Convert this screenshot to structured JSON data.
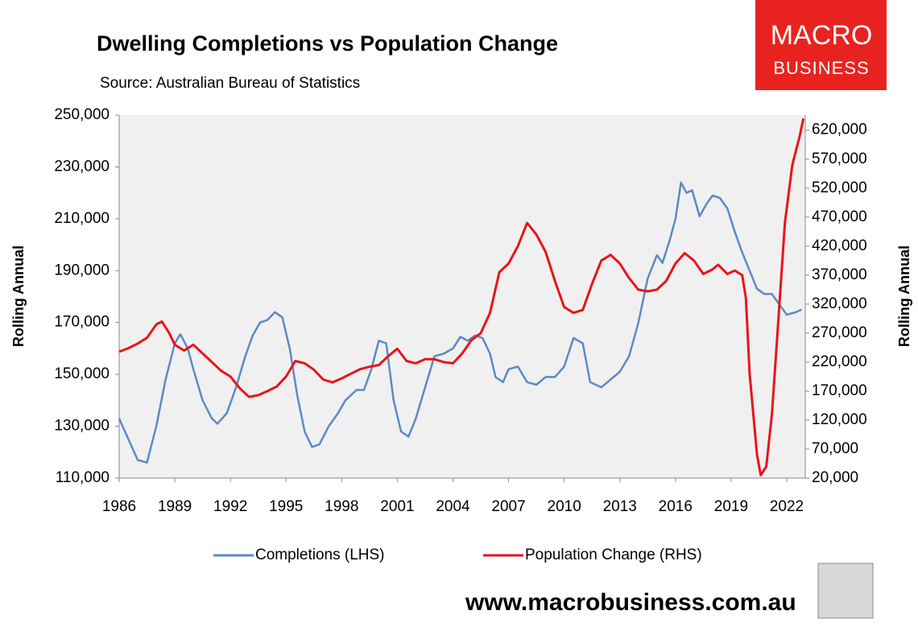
{
  "chart_data": {
    "type": "line",
    "title": "Dwelling Completions vs Population Change",
    "subtitle": "Source: Australian Bureau of Statistics",
    "logo": [
      "MACRO",
      "BUSINESS"
    ],
    "footer": "www.macrobusiness.com.au",
    "ylabel": "Rolling Annual",
    "y2label": "Rolling Annual",
    "xlim": [
      1986,
      2023
    ],
    "xticks": [
      1986,
      1989,
      1992,
      1995,
      1998,
      2001,
      2004,
      2007,
      2010,
      2013,
      2016,
      2019,
      2022
    ],
    "ylim": [
      110000,
      250000
    ],
    "yticks": [
      {
        "value": 110000,
        "label": "110,000"
      },
      {
        "value": 130000,
        "label": "130,000"
      },
      {
        "value": 150000,
        "label": "150,000"
      },
      {
        "value": 170000,
        "label": "170,000"
      },
      {
        "value": 190000,
        "label": "190,000"
      },
      {
        "value": 210000,
        "label": "210,000"
      },
      {
        "value": 230000,
        "label": "230,000"
      },
      {
        "value": 250000,
        "label": "250,000"
      }
    ],
    "y2lim": [
      20000,
      646000
    ],
    "y2ticks": [
      {
        "value": 20000,
        "label": "20,000"
      },
      {
        "value": 70000,
        "label": "70,000"
      },
      {
        "value": 120000,
        "label": "120,000"
      },
      {
        "value": 170000,
        "label": "170,000"
      },
      {
        "value": 220000,
        "label": "220,000"
      },
      {
        "value": 270000,
        "label": "270,000"
      },
      {
        "value": 320000,
        "label": "320,000"
      },
      {
        "value": 370000,
        "label": "370,000"
      },
      {
        "value": 420000,
        "label": "420,000"
      },
      {
        "value": 470000,
        "label": "470,000"
      },
      {
        "value": 520000,
        "label": "520,000"
      },
      {
        "value": 570000,
        "label": "570,000"
      },
      {
        "value": 620000,
        "label": "620,000"
      }
    ],
    "grid": false,
    "series": [
      {
        "name": "Completions (LHS)",
        "color": "#5b8ac6",
        "x": [
          1986.0,
          1986.5,
          1987.0,
          1987.5,
          1988.0,
          1988.5,
          1989.0,
          1989.3,
          1989.7,
          1990.0,
          1990.5,
          1991.0,
          1991.3,
          1991.8,
          1992.3,
          1992.8,
          1993.2,
          1993.6,
          1994.0,
          1994.4,
          1994.8,
          1995.2,
          1995.6,
          1996.0,
          1996.4,
          1996.8,
          1997.3,
          1997.8,
          1998.2,
          1998.8,
          1999.2,
          1999.6,
          2000.0,
          2000.4,
          2000.8,
          2001.2,
          2001.6,
          2002.0,
          2002.5,
          2003.0,
          2003.5,
          2004.0,
          2004.4,
          2004.8,
          2005.2,
          2005.6,
          2006.0,
          2006.3,
          2006.7,
          2007.0,
          2007.5,
          2008.0,
          2008.5,
          2009.0,
          2009.5,
          2010.0,
          2010.5,
          2011.0,
          2011.4,
          2012.0,
          2012.5,
          2013.0,
          2013.5,
          2014.0,
          2014.5,
          2015.0,
          2015.3,
          2015.7,
          2016.0,
          2016.3,
          2016.6,
          2016.9,
          2017.3,
          2017.7,
          2018.0,
          2018.4,
          2018.8,
          2019.2,
          2019.6,
          2020.0,
          2020.4,
          2020.8,
          2021.2,
          2021.6,
          2022.0,
          2022.5,
          2022.8
        ],
        "values": [
          133000,
          125000,
          117000,
          116000,
          130000,
          148000,
          162000,
          165500,
          160000,
          152000,
          140000,
          133000,
          131000,
          135000,
          145000,
          157000,
          165000,
          170000,
          171000,
          174000,
          172000,
          160000,
          142000,
          128000,
          122000,
          123000,
          130000,
          135000,
          140000,
          144000,
          144000,
          152000,
          163000,
          162000,
          140000,
          128000,
          126000,
          133000,
          145000,
          157000,
          158000,
          160000,
          164500,
          163000,
          165000,
          164000,
          158000,
          149000,
          147000,
          152000,
          153000,
          147000,
          146000,
          149000,
          149000,
          153000,
          164000,
          162000,
          147000,
          145000,
          148000,
          151000,
          157000,
          170000,
          187000,
          196000,
          193000,
          202000,
          210000,
          224000,
          220000,
          221000,
          211000,
          216000,
          219000,
          218000,
          214000,
          205000,
          197000,
          190000,
          183000,
          181000,
          181000,
          177000,
          173000,
          174000,
          175000
        ]
      },
      {
        "name": "Population Change (RHS)",
        "color": "#e8141c",
        "axis": "y2",
        "x": [
          1986.0,
          1986.5,
          1987.0,
          1987.5,
          1988.0,
          1988.3,
          1988.7,
          1989.0,
          1989.5,
          1990.0,
          1990.5,
          1991.0,
          1991.5,
          1992.0,
          1992.5,
          1993.0,
          1993.5,
          1994.0,
          1994.5,
          1995.0,
          1995.5,
          1996.0,
          1996.5,
          1997.0,
          1997.5,
          1998.0,
          1998.5,
          1999.0,
          1999.5,
          2000.0,
          2000.5,
          2001.0,
          2001.5,
          2002.0,
          2002.5,
          2003.0,
          2003.5,
          2004.0,
          2004.5,
          2005.0,
          2005.5,
          2006.0,
          2006.5,
          2007.0,
          2007.5,
          2008.0,
          2008.5,
          2009.0,
          2009.5,
          2010.0,
          2010.5,
          2011.0,
          2011.5,
          2012.0,
          2012.5,
          2013.0,
          2013.5,
          2014.0,
          2014.5,
          2015.0,
          2015.5,
          2016.0,
          2016.5,
          2017.0,
          2017.5,
          2018.0,
          2018.3,
          2018.8,
          2019.2,
          2019.6,
          2019.8,
          2020.0,
          2020.4,
          2020.6,
          2020.9,
          2021.2,
          2021.5,
          2021.9,
          2022.3,
          2022.7,
          2022.9
        ],
        "values": [
          238000,
          244000,
          252000,
          262000,
          285000,
          290000,
          270000,
          250000,
          240000,
          250000,
          235000,
          220000,
          205000,
          195000,
          175000,
          160000,
          163000,
          170000,
          178000,
          195000,
          222000,
          218000,
          207000,
          190000,
          185000,
          192000,
          200000,
          208000,
          212000,
          215000,
          230000,
          243000,
          222000,
          218000,
          225000,
          225000,
          220000,
          218000,
          235000,
          258000,
          270000,
          305000,
          375000,
          390000,
          420000,
          460000,
          440000,
          410000,
          360000,
          315000,
          305000,
          310000,
          355000,
          395000,
          405000,
          390000,
          365000,
          345000,
          342000,
          345000,
          360000,
          390000,
          408000,
          395000,
          372000,
          380000,
          388000,
          372000,
          378000,
          370000,
          330000,
          200000,
          60000,
          25000,
          40000,
          130000,
          270000,
          460000,
          560000,
          610000,
          640000
        ]
      }
    ]
  }
}
